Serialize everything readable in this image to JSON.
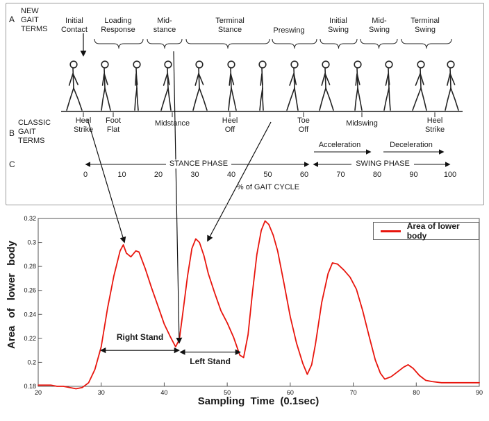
{
  "top_panel": {
    "row_a_label": "A",
    "row_b_label": "B",
    "row_c_label": "C",
    "new_terms_heading": "NEW GAIT TERMS",
    "classic_terms_heading": "CLASSIC GAIT TERMS",
    "new_terms": [
      "Initial Contact",
      "Loading Response",
      "Mid-stance",
      "Terminal Stance",
      "Preswing",
      "Initial Swing",
      "Mid-Swing",
      "Terminal Swing"
    ],
    "classic_terms": [
      "Heel Strike",
      "Foot Flat",
      "Midstance",
      "Heel Off",
      "Toe Off",
      "Midswing",
      "Heel Strike"
    ],
    "acceleration_label": "Acceleration",
    "deceleration_label": "Deceleration",
    "stance_phase_label": "STANCE PHASE",
    "swing_phase_label": "SWING PHASE",
    "cycle_ticks": [
      0,
      10,
      20,
      30,
      40,
      50,
      60,
      70,
      80,
      90,
      100
    ],
    "cycle_axis_title": "% of GAIT CYCLE"
  },
  "chart_data": {
    "type": "line",
    "title": "",
    "xlabel": "Sampling Time (0.1sec)",
    "ylabel": "Area of lower body",
    "xlim": [
      20,
      90
    ],
    "ylim": [
      0.18,
      0.32
    ],
    "xticks": [
      20,
      30,
      40,
      50,
      60,
      70,
      80,
      90
    ],
    "yticks": [
      0.18,
      0.2,
      0.22,
      0.24,
      0.26,
      0.28,
      0.3,
      0.32
    ],
    "ytick_labels": [
      "0.18",
      "0.2",
      "0.22",
      "0.24",
      "0.26",
      "0.28",
      "0.3",
      "0.32"
    ],
    "grid": false,
    "legend": {
      "position": "top-right",
      "entries": [
        {
          "label": "Area of lower body",
          "color": "#e8150d"
        }
      ]
    },
    "series": [
      {
        "name": "Area of lower body",
        "color": "#e8150d",
        "points": [
          [
            20,
            0.181
          ],
          [
            21,
            0.181
          ],
          [
            22,
            0.181
          ],
          [
            23,
            0.18
          ],
          [
            24,
            0.18
          ],
          [
            25,
            0.179
          ],
          [
            26,
            0.178
          ],
          [
            27,
            0.179
          ],
          [
            28,
            0.183
          ],
          [
            29,
            0.194
          ],
          [
            30,
            0.213
          ],
          [
            31,
            0.245
          ],
          [
            32,
            0.272
          ],
          [
            33,
            0.293
          ],
          [
            33.5,
            0.298
          ],
          [
            34,
            0.291
          ],
          [
            34.7,
            0.288
          ],
          [
            35.5,
            0.293
          ],
          [
            36,
            0.292
          ],
          [
            37,
            0.278
          ],
          [
            38,
            0.262
          ],
          [
            39,
            0.247
          ],
          [
            40,
            0.232
          ],
          [
            41,
            0.221
          ],
          [
            41.8,
            0.213
          ],
          [
            42.4,
            0.219
          ],
          [
            43,
            0.243
          ],
          [
            43.7,
            0.272
          ],
          [
            44.4,
            0.295
          ],
          [
            45,
            0.303
          ],
          [
            45.6,
            0.3
          ],
          [
            46.3,
            0.289
          ],
          [
            47,
            0.274
          ],
          [
            48,
            0.258
          ],
          [
            49,
            0.243
          ],
          [
            50,
            0.233
          ],
          [
            51,
            0.221
          ],
          [
            52,
            0.206
          ],
          [
            52.6,
            0.204
          ],
          [
            53.3,
            0.223
          ],
          [
            54,
            0.258
          ],
          [
            54.7,
            0.29
          ],
          [
            55.4,
            0.31
          ],
          [
            56,
            0.318
          ],
          [
            56.6,
            0.315
          ],
          [
            57.3,
            0.306
          ],
          [
            58,
            0.293
          ],
          [
            59,
            0.266
          ],
          [
            60,
            0.238
          ],
          [
            61,
            0.216
          ],
          [
            62,
            0.199
          ],
          [
            62.7,
            0.19
          ],
          [
            63.4,
            0.198
          ],
          [
            64,
            0.215
          ],
          [
            65,
            0.25
          ],
          [
            66,
            0.274
          ],
          [
            66.7,
            0.283
          ],
          [
            67.5,
            0.282
          ],
          [
            68.5,
            0.277
          ],
          [
            69.5,
            0.271
          ],
          [
            70.5,
            0.261
          ],
          [
            71.5,
            0.243
          ],
          [
            72.5,
            0.222
          ],
          [
            73.5,
            0.202
          ],
          [
            74.3,
            0.191
          ],
          [
            75,
            0.186
          ],
          [
            76,
            0.188
          ],
          [
            77,
            0.192
          ],
          [
            78,
            0.196
          ],
          [
            78.7,
            0.198
          ],
          [
            79.5,
            0.195
          ],
          [
            80.5,
            0.189
          ],
          [
            81.5,
            0.185
          ],
          [
            82.5,
            0.184
          ],
          [
            84,
            0.183
          ],
          [
            86,
            0.183
          ],
          [
            88,
            0.183
          ],
          [
            90,
            0.183
          ]
        ]
      }
    ],
    "annotations": [
      {
        "type": "double-arrow-label",
        "label": "Right Stand",
        "x_start": 30,
        "x_end": 42.3,
        "y": 0.21,
        "label_position": "above"
      },
      {
        "type": "double-arrow-label",
        "label": "Left Stand",
        "x_start": 42.6,
        "x_end": 52,
        "y": 0.2085,
        "label_position": "below"
      }
    ]
  },
  "colors": {
    "line_red": "#e8150d",
    "ink": "#1a1a1a",
    "panel_border": "#9a9a9a"
  }
}
